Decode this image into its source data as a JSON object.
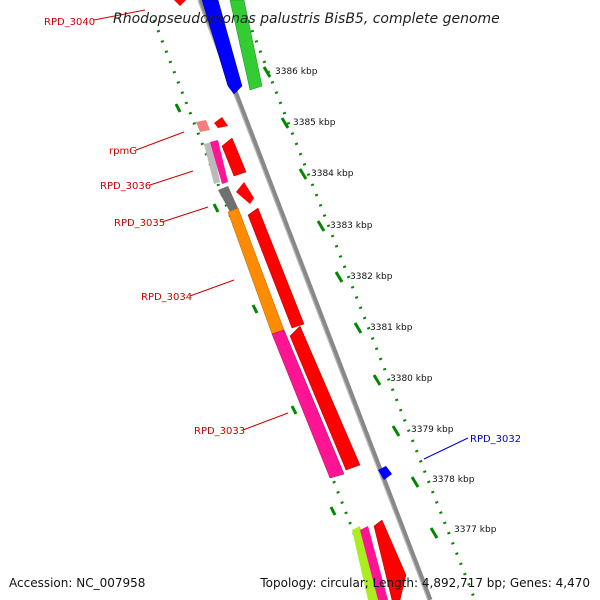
{
  "title": "Rhodopseudomonas palustris BisB5, complete genome",
  "accession_text": "Accession: NC_007958",
  "summary_text": "Topology: circular; Length: 4,892,717 bp; Genes: 4,470",
  "ticks": [
    "3386 kbp",
    "3385 kbp",
    "3384 kbp",
    "3383 kbp",
    "3382 kbp",
    "3381 kbp",
    "3380 kbp",
    "3379 kbp",
    "3378 kbp",
    "3377 kbp"
  ],
  "labels": [
    {
      "text": "RPD_3040",
      "color": "#cc0000"
    },
    {
      "text": "rpmG",
      "color": "#cc0000"
    },
    {
      "text": "RPD_3036",
      "color": "#cc0000"
    },
    {
      "text": "RPD_3035",
      "color": "#cc0000"
    },
    {
      "text": "RPD_3034",
      "color": "#cc0000"
    },
    {
      "text": "RPD_3033",
      "color": "#cc0000"
    },
    {
      "text": "RPD_3032",
      "color": "#0000cc"
    }
  ],
  "colors": {
    "backbone": "#888888",
    "forward_strand": "#ff0000",
    "blue_gene": "#0000ff",
    "green_gene": "#33cc33",
    "magenta": "#ff1493",
    "orange": "#ff8c00",
    "gray": "#707070",
    "pink_light": "#f08080",
    "dotted_track": "#008800"
  }
}
